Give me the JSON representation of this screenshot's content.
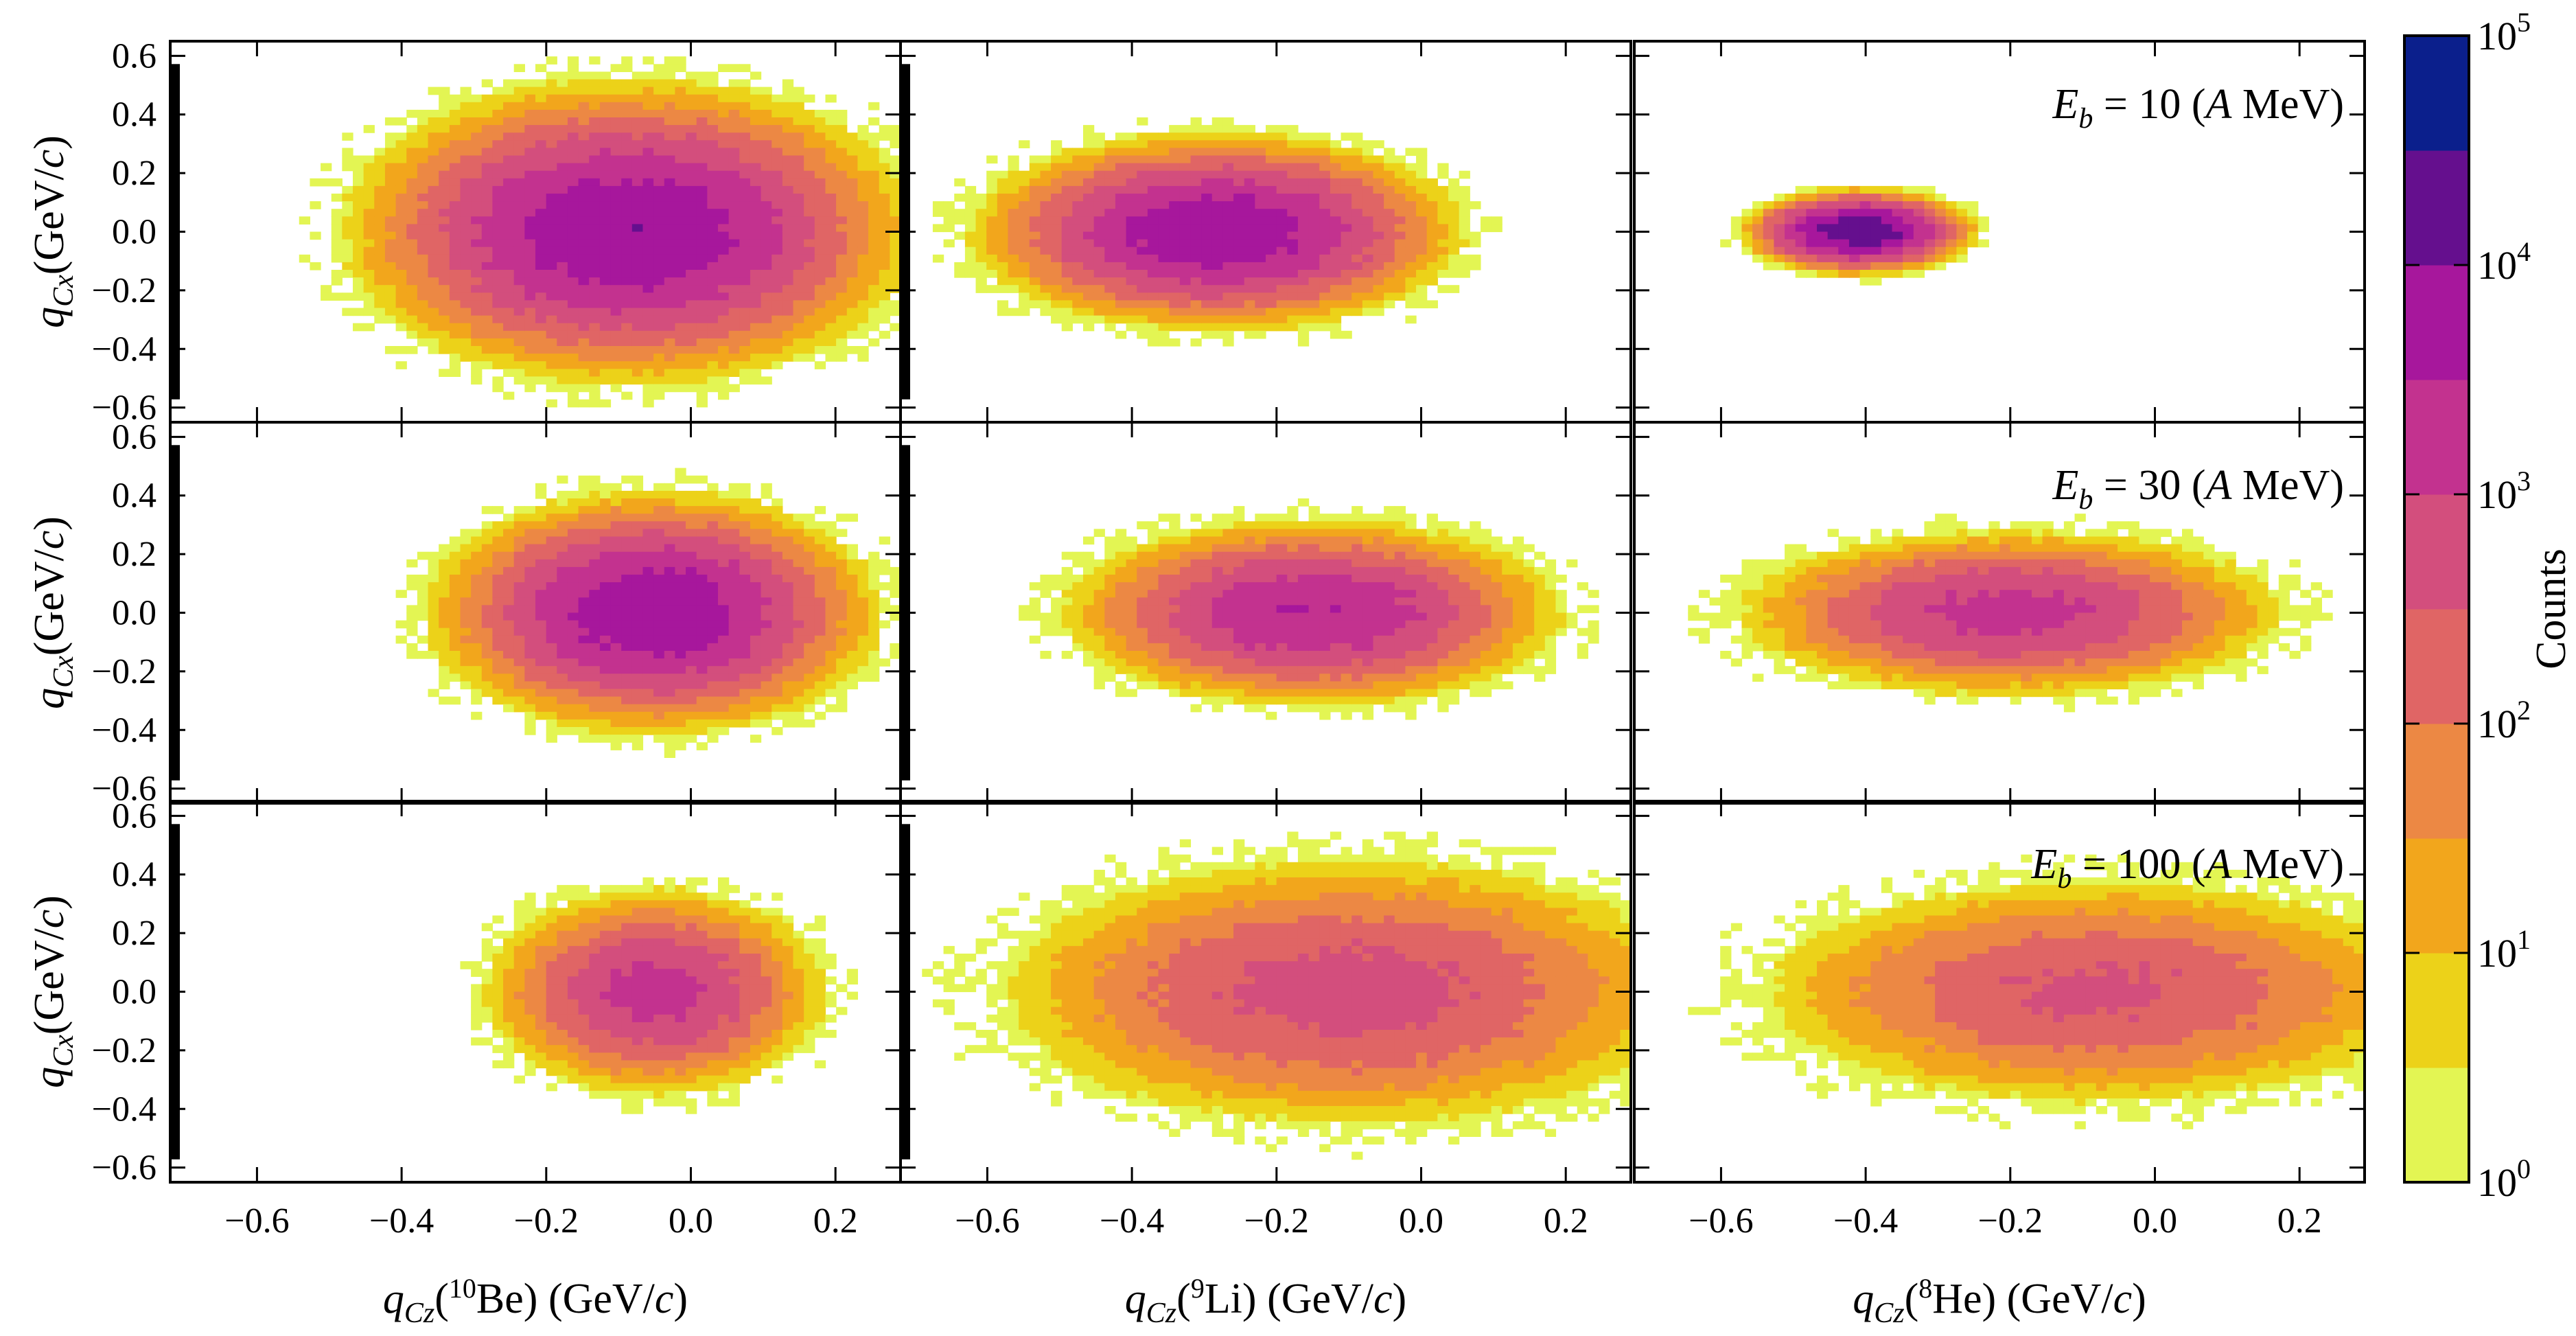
{
  "chart_data": {
    "type": "heatmap",
    "grid": {
      "rows": 3,
      "cols": 3
    },
    "x_range": [
      -0.72,
      0.29
    ],
    "y_range": [
      -0.65,
      0.65
    ],
    "x_ticks": [
      -0.6,
      -0.4,
      -0.2,
      0.0,
      0.2
    ],
    "x_tick_labels": [
      "−0.6",
      "−0.4",
      "−0.2",
      "0.0",
      "0.2"
    ],
    "y_ticks": [
      0.6,
      0.4,
      0.2,
      0.0,
      -0.2,
      -0.4,
      -0.6
    ],
    "y_tick_labels": [
      "0.6",
      "0.4",
      "0.2",
      "0.0",
      "−0.2",
      "−0.4",
      "−0.6"
    ],
    "ylabel": {
      "q": "q",
      "sub": "Cx",
      "unit": "(GeV/",
      "c": "c",
      "close": ")"
    },
    "xlabels": [
      {
        "q": "q",
        "sub": "Cz",
        "open": "(",
        "mass": "10",
        "element": "Be",
        "unit": ") (GeV/",
        "c": "c",
        "close": ")"
      },
      {
        "q": "q",
        "sub": "Cz",
        "open": "(",
        "mass": "9",
        "element": "Li",
        "unit": ") (GeV/",
        "c": "c",
        "close": ")"
      },
      {
        "q": "q",
        "sub": "Cz",
        "open": "(",
        "mass": "8",
        "element": "He",
        "unit": ") (GeV/",
        "c": "c",
        "close": ")"
      }
    ],
    "energy_labels": [
      {
        "row": 0,
        "E": "E",
        "sub": "b",
        "eq": " = 10 (",
        "A": "A",
        "unit": " MeV)"
      },
      {
        "row": 1,
        "E": "E",
        "sub": "b",
        "eq": " = 30 (",
        "A": "A",
        "unit": " MeV)"
      },
      {
        "row": 2,
        "E": "E",
        "sub": "b",
        "eq": " = 100 (",
        "A": "A",
        "unit": " MeV)"
      }
    ],
    "colorbar": {
      "label": "Counts",
      "scale": "log",
      "range": [
        1,
        100000
      ],
      "ticks": [
        {
          "base": "10",
          "exp": "0"
        },
        {
          "base": "10",
          "exp": "1"
        },
        {
          "base": "10",
          "exp": "2"
        },
        {
          "base": "10",
          "exp": "3"
        },
        {
          "base": "10",
          "exp": "4"
        },
        {
          "base": "10",
          "exp": "5"
        }
      ],
      "colors": [
        "#e3f553",
        "#ecd219",
        "#f2a61c",
        "#ec8844",
        "#e06565",
        "#d34e7d",
        "#c3328f",
        "#a7179c",
        "#650f8e",
        "#0b1f8c"
      ]
    },
    "panels": [
      {
        "row": 0,
        "col": 0,
        "cx": -0.08,
        "cy": 0.0,
        "sx": 0.15,
        "sy": 0.2,
        "peak_log": 3.9,
        "yscale": 1.9,
        "min_x": -0.7,
        "lo_wall": -0.7,
        "wall_bins": 6,
        "base": 0.18,
        "seed": 11
      },
      {
        "row": 0,
        "col": 1,
        "cx": -0.28,
        "cy": 0.0,
        "sx": 0.13,
        "sy": 0.13,
        "peak_log": 3.9,
        "yscale": 1.6,
        "min_x": -0.7,
        "lo_wall": -0.7,
        "wall_bins": 4,
        "base": 0.1,
        "seed": 23
      },
      {
        "row": 0,
        "col": 2,
        "cx": -0.41,
        "cy": 0.0,
        "sx": 0.06,
        "sy": 0.055,
        "peak_log": 4.4,
        "yscale": 1.0,
        "min_x": -0.72,
        "lo_wall": -0.9,
        "wall_bins": 0,
        "base": 0.0,
        "seed": 37
      },
      {
        "row": 1,
        "col": 0,
        "cx": -0.05,
        "cy": 0.0,
        "sx": 0.12,
        "sy": 0.16,
        "peak_log": 3.9,
        "yscale": 1.6,
        "min_x": -0.7,
        "lo_wall": -0.7,
        "wall_bins": 5,
        "base": 0.05,
        "seed": 41
      },
      {
        "row": 1,
        "col": 1,
        "cx": -0.15,
        "cy": 0.0,
        "sx": 0.14,
        "sy": 0.13,
        "peak_log": 3.5,
        "yscale": 1.5,
        "min_x": -0.7,
        "lo_wall": -0.7,
        "wall_bins": 3,
        "base": 0.03,
        "seed": 53
      },
      {
        "row": 1,
        "col": 2,
        "cx": -0.2,
        "cy": 0.0,
        "sx": 0.16,
        "sy": 0.12,
        "peak_log": 3.2,
        "yscale": 1.0,
        "min_x": -0.72,
        "lo_wall": -0.9,
        "wall_bins": 0,
        "base": 0.0,
        "seed": 67
      },
      {
        "row": 2,
        "col": 0,
        "cx": -0.05,
        "cy": 0.0,
        "sx": 0.1,
        "sy": 0.15,
        "peak_log": 3.2,
        "yscale": 1.3,
        "min_x": -0.7,
        "lo_wall": -0.7,
        "wall_bins": 4,
        "base": 0.02,
        "seed": 71
      },
      {
        "row": 2,
        "col": 1,
        "cx": -0.1,
        "cy": 0.0,
        "sx": 0.22,
        "sy": 0.21,
        "peak_log": 2.75,
        "yscale": 1.0,
        "min_x": -0.7,
        "lo_wall": -0.7,
        "wall_bins": 4,
        "base": 0.02,
        "seed": 83
      },
      {
        "row": 2,
        "col": 2,
        "cx": -0.08,
        "cy": 0.0,
        "sx": 0.22,
        "sy": 0.18,
        "peak_log": 2.6,
        "yscale": 1.0,
        "min_x": -0.72,
        "lo_wall": -0.9,
        "wall_bins": 0,
        "base": 0.0,
        "seed": 97
      }
    ]
  }
}
